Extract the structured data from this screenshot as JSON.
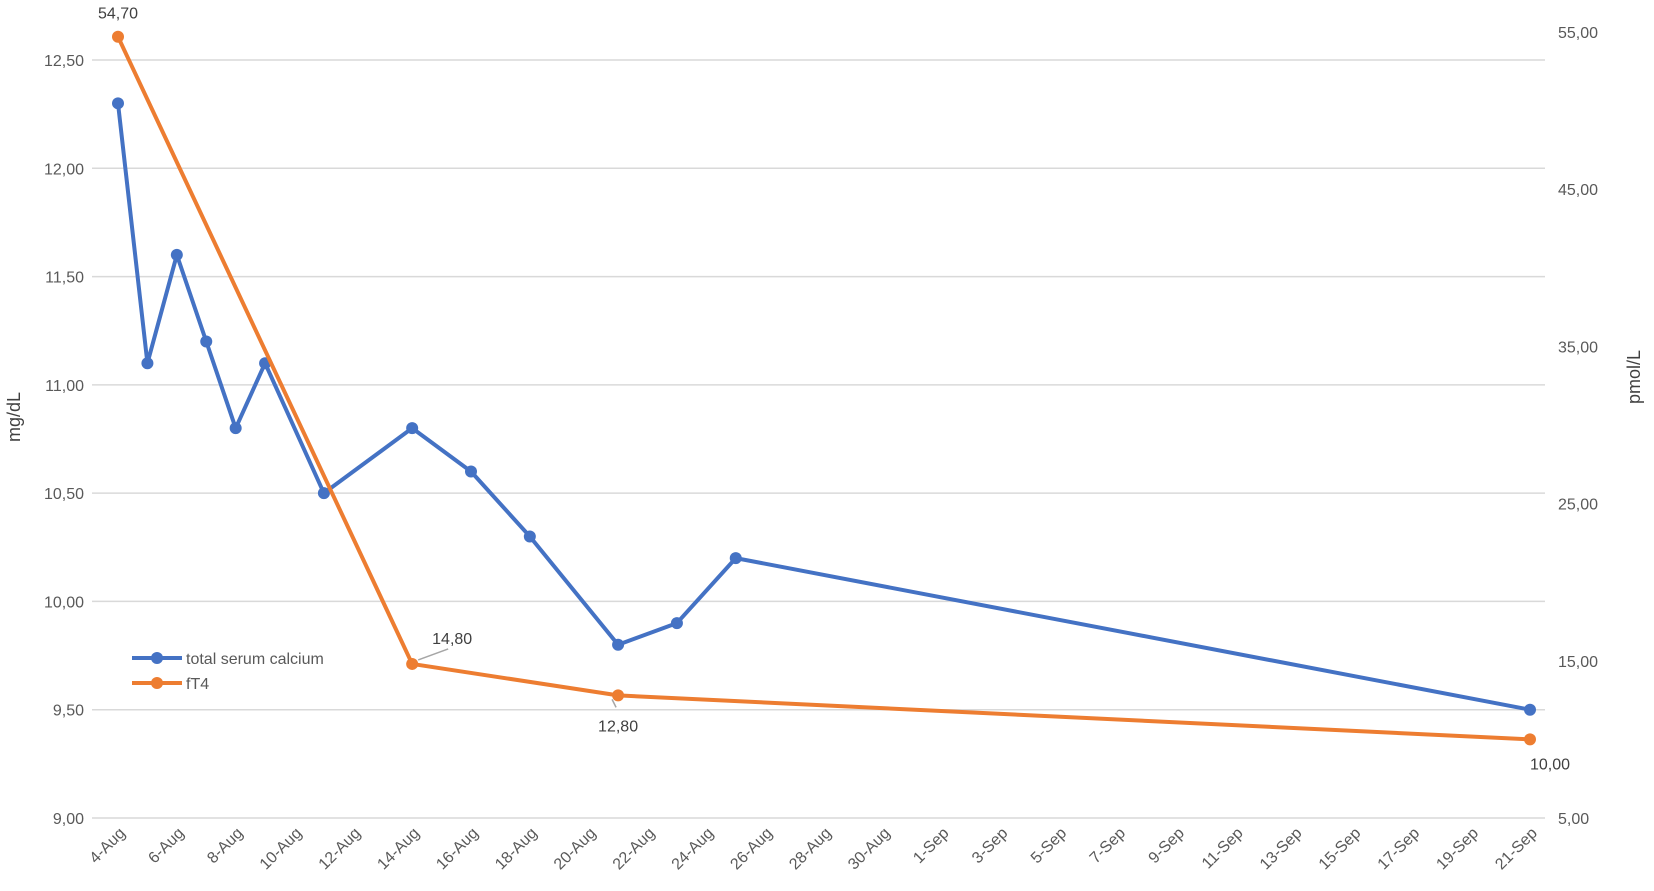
{
  "chart_data": {
    "type": "line",
    "xlabel": "",
    "ylabel": "mg/dL",
    "y2label": "pmol/L",
    "x_tick_labels": [
      "4-Aug",
      "6-Aug",
      "8-Aug",
      "10-Aug",
      "12-Aug",
      "14-Aug",
      "16-Aug",
      "18-Aug",
      "20-Aug",
      "22-Aug",
      "24-Aug",
      "26-Aug",
      "28-Aug",
      "30-Aug",
      "1-Sep",
      "3-Sep",
      "5-Sep",
      "7-Sep",
      "9-Sep",
      "11-Sep",
      "13-Sep",
      "15-Sep",
      "17-Sep",
      "19-Sep",
      "21-Sep"
    ],
    "ylim": [
      9.0,
      12.5
    ],
    "y_ticks": [
      "9,00",
      "9,50",
      "10,00",
      "10,50",
      "11,00",
      "11,50",
      "12,00",
      "12,50"
    ],
    "y2lim": [
      5.0,
      55.0
    ],
    "y2_ticks": [
      "5,00",
      "15,00",
      "25,00",
      "35,00",
      "45,00",
      "55,00"
    ],
    "grid": true,
    "legend_position": "bottom-left",
    "series": [
      {
        "name": "total serum calcium",
        "axis": "left",
        "color": "#4472C4",
        "x": [
          "4-Aug",
          "5-Aug",
          "6-Aug",
          "7-Aug",
          "8-Aug",
          "9-Aug",
          "11-Aug",
          "14-Aug",
          "16-Aug",
          "18-Aug",
          "21-Aug",
          "23-Aug",
          "25-Aug",
          "21-Sep"
        ],
        "values": [
          12.3,
          11.1,
          11.6,
          11.2,
          10.8,
          11.1,
          10.5,
          10.8,
          10.6,
          10.3,
          9.8,
          9.9,
          10.2,
          9.5
        ]
      },
      {
        "name": "fT4",
        "axis": "right",
        "color": "#ED7D31",
        "x": [
          "4-Aug",
          "14-Aug",
          "21-Aug",
          "21-Sep"
        ],
        "values": [
          54.7,
          14.8,
          12.8,
          10.0
        ],
        "labels": [
          "54,70",
          "14,80",
          "12,80",
          "10,00"
        ]
      }
    ]
  }
}
